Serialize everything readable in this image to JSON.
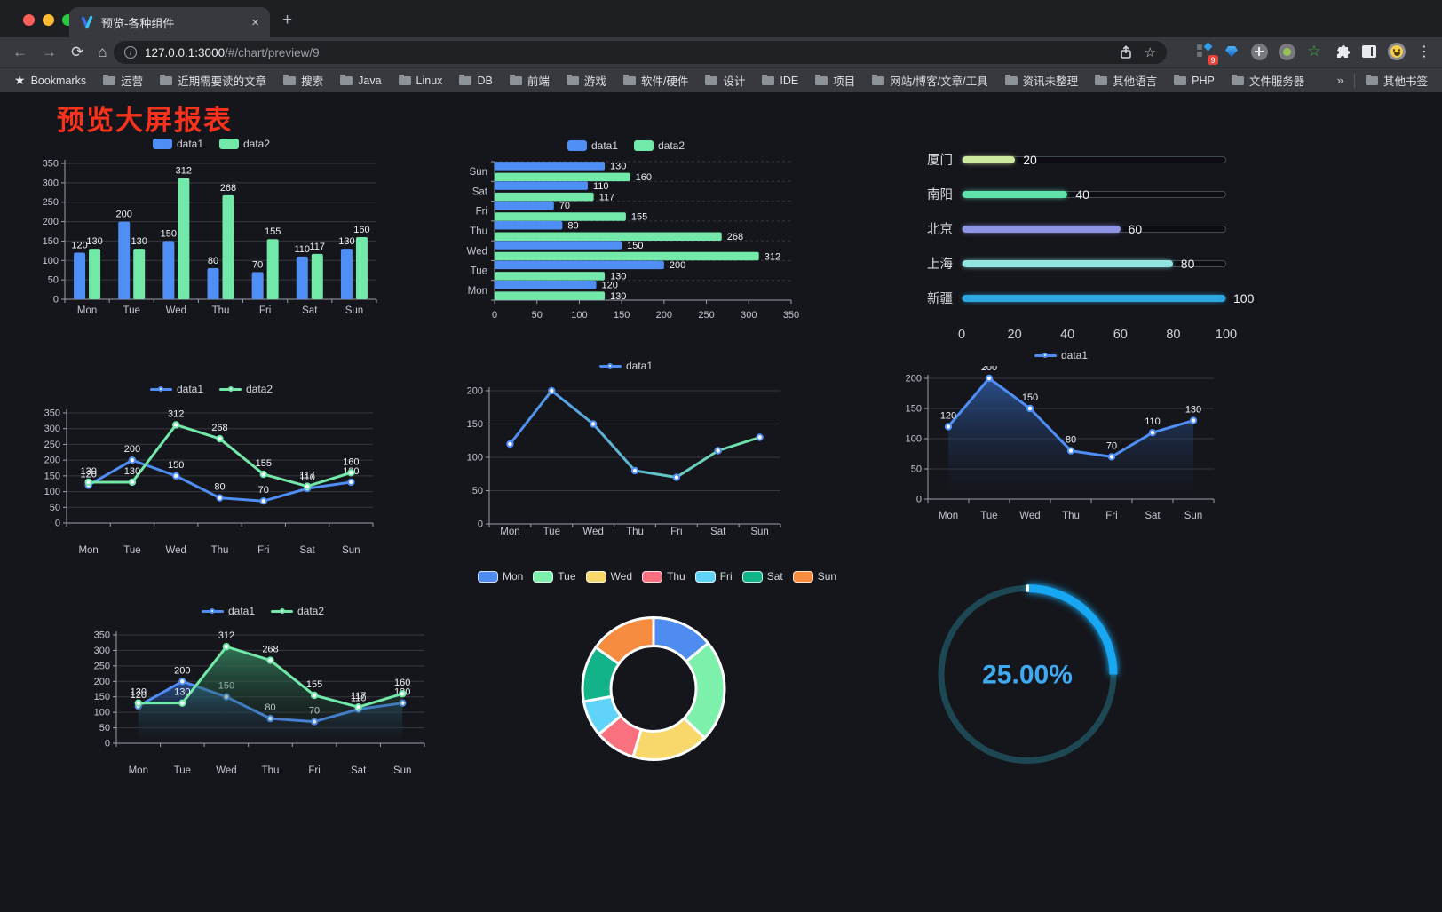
{
  "browser": {
    "tab_title": "预览-各种组件",
    "close_glyph": "×",
    "new_tab_glyph": "+",
    "url_host": "127.0.0.1:3000",
    "url_path": "/#/chart/preview/9",
    "bookmarks_label": "Bookmarks",
    "bookmarks": [
      "运营",
      "近期需要读的文章",
      "搜索",
      "Java",
      "Linux",
      "DB",
      "前端",
      "游戏",
      "软件/硬件",
      "设计",
      "IDE",
      "项目",
      "网站/博客/文章/工具",
      "资讯未整理",
      "其他语言",
      "PHP",
      "文件服务器"
    ],
    "overflow_glyph": "»",
    "other_bookmarks": "其他书签",
    "extension_badge": "9"
  },
  "page": {
    "title": "预览大屏报表",
    "title_color": "#f8321b"
  },
  "chart_data": [
    {
      "id": "bar-vertical",
      "type": "bar",
      "categories": [
        "Mon",
        "Tue",
        "Wed",
        "Thu",
        "Fri",
        "Sat",
        "Sun"
      ],
      "series": [
        {
          "name": "data1",
          "color": "#4e8ef5",
          "values": [
            120,
            200,
            150,
            80,
            70,
            110,
            130
          ]
        },
        {
          "name": "data2",
          "color": "#72e8a9",
          "values": [
            130,
            130,
            312,
            268,
            155,
            117,
            160
          ]
        }
      ],
      "ylim": [
        0,
        350
      ],
      "ytick_step": 50,
      "value_labels": true,
      "legend_position": "top",
      "grid": true
    },
    {
      "id": "bar-horizontal",
      "type": "hbar",
      "categories": [
        "Mon",
        "Tue",
        "Wed",
        "Thu",
        "Fri",
        "Sat",
        "Sun"
      ],
      "series": [
        {
          "name": "data1",
          "color": "#4e8ef5",
          "values": [
            120,
            200,
            150,
            80,
            70,
            110,
            130
          ]
        },
        {
          "name": "data2",
          "color": "#72e8a9",
          "values": [
            130,
            130,
            312,
            268,
            155,
            117,
            160
          ]
        }
      ],
      "xlim": [
        0,
        350
      ],
      "xtick_step": 50,
      "value_labels": true,
      "legend_position": "top"
    },
    {
      "id": "progress-list",
      "type": "progress",
      "max": 100,
      "ticks": [
        0,
        20,
        40,
        60,
        80,
        100
      ],
      "rows": [
        {
          "label": "厦门",
          "value": 20,
          "color": "#cce79e"
        },
        {
          "label": "南阳",
          "value": 40,
          "color": "#5fe3ab"
        },
        {
          "label": "北京",
          "value": 60,
          "color": "#8e96e4"
        },
        {
          "label": "上海",
          "value": 80,
          "color": "#93e4e0"
        },
        {
          "label": "新疆",
          "value": 100,
          "color": "#2ea6e0"
        }
      ]
    },
    {
      "id": "line-two-series",
      "type": "line",
      "categories": [
        "Mon",
        "Tue",
        "Wed",
        "Thu",
        "Fri",
        "Sat",
        "Sun"
      ],
      "series": [
        {
          "name": "data1",
          "color": "#4e8ef5",
          "values": [
            120,
            200,
            150,
            80,
            70,
            110,
            130
          ]
        },
        {
          "name": "data2",
          "color": "#72e8a9",
          "values": [
            130,
            130,
            312,
            268,
            155,
            117,
            160
          ]
        }
      ],
      "ylim": [
        0,
        350
      ],
      "ytick_step": 50,
      "markers": true,
      "value_labels": true
    },
    {
      "id": "line-gradient",
      "type": "line",
      "categories": [
        "Mon",
        "Tue",
        "Wed",
        "Thu",
        "Fri",
        "Sat",
        "Sun"
      ],
      "series": [
        {
          "name": "data1",
          "color": "#4e8ef5",
          "gradient": [
            "#4e8ef5",
            "#72e8a9"
          ],
          "values": [
            120,
            200,
            150,
            80,
            70,
            110,
            130
          ]
        }
      ],
      "ylim": [
        0,
        200
      ],
      "ytick_step": 50,
      "markers": true,
      "value_labels": false
    },
    {
      "id": "area-single",
      "type": "line",
      "categories": [
        "Mon",
        "Tue",
        "Wed",
        "Thu",
        "Fri",
        "Sat",
        "Sun"
      ],
      "series": [
        {
          "name": "data1",
          "color": "#4e8ef5",
          "area": [
            "rgba(45,90,160,0.85)",
            "rgba(25,35,55,0)"
          ],
          "values": [
            120,
            200,
            150,
            80,
            70,
            110,
            130
          ]
        }
      ],
      "ylim": [
        0,
        200
      ],
      "ytick_step": 50,
      "markers": true,
      "value_labels": true
    },
    {
      "id": "area-two-series",
      "type": "line",
      "categories": [
        "Mon",
        "Tue",
        "Wed",
        "Thu",
        "Fri",
        "Sat",
        "Sun"
      ],
      "series": [
        {
          "name": "data1",
          "color": "#4e8ef5",
          "area": [
            "rgba(45,90,160,0.8)",
            "rgba(25,35,55,0)"
          ],
          "values": [
            120,
            200,
            150,
            80,
            70,
            110,
            130
          ]
        },
        {
          "name": "data2",
          "color": "#72e8a9",
          "area": [
            "rgba(55,140,100,0.8)",
            "rgba(25,45,35,0)"
          ],
          "values": [
            130,
            130,
            312,
            268,
            155,
            117,
            160
          ]
        }
      ],
      "ylim": [
        0,
        350
      ],
      "ytick_step": 50,
      "markers": true,
      "value_labels": true
    },
    {
      "id": "donut",
      "type": "pie",
      "inner_ratio": 0.6,
      "items": [
        {
          "label": "Mon",
          "value": 120,
          "color": "#4e8cf0"
        },
        {
          "label": "Tue",
          "value": 200,
          "color": "#7df0ac"
        },
        {
          "label": "Wed",
          "value": 150,
          "color": "#f8d86a"
        },
        {
          "label": "Thu",
          "value": 80,
          "color": "#f9707f"
        },
        {
          "label": "Fri",
          "value": 70,
          "color": "#5fd3f8"
        },
        {
          "label": "Sat",
          "value": 110,
          "color": "#12b388"
        },
        {
          "label": "Sun",
          "value": 130,
          "color": "#f68c3f"
        }
      ]
    },
    {
      "id": "gauge",
      "type": "gauge",
      "value": 25,
      "label": "25.00%",
      "color": "#18a7f2",
      "track_color": "#1d4752",
      "text_color": "#3fa9f2"
    }
  ]
}
